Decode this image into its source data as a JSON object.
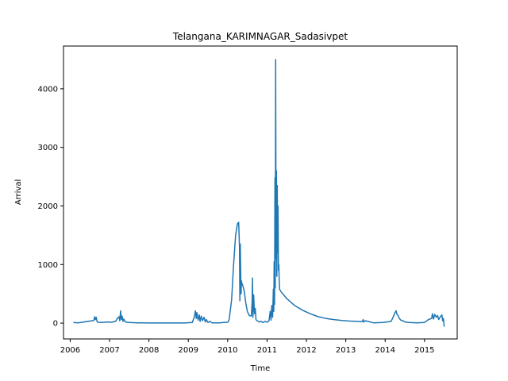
{
  "chart_data": {
    "type": "line",
    "title": "Telangana_KARIMNAGAR_Sadasivpet",
    "xlabel": "Time",
    "ylabel": "Arrival",
    "xlim": [
      2005.83,
      2015.83
    ],
    "ylim": [
      -270,
      4730
    ],
    "x_ticks": [
      2006,
      2007,
      2008,
      2009,
      2010,
      2011,
      2012,
      2013,
      2014,
      2015
    ],
    "x_tick_labels": [
      "2006",
      "2007",
      "2008",
      "2009",
      "2010",
      "2011",
      "2012",
      "2013",
      "2014",
      "2015"
    ],
    "y_ticks": [
      0,
      1000,
      2000,
      3000,
      4000
    ],
    "y_tick_labels": [
      "0",
      "1000",
      "2000",
      "3000",
      "4000"
    ],
    "grid": false,
    "legend": "none",
    "line_color": "#1f77b4",
    "series": [
      {
        "x": [
          2006.08,
          2006.2,
          2006.35,
          2006.5,
          2006.6,
          2006.62,
          2006.64,
          2006.66,
          2006.68,
          2006.7,
          2006.8,
          2006.95,
          2007.05,
          2007.15,
          2007.2,
          2007.24,
          2007.26,
          2007.28,
          2007.3,
          2007.32,
          2007.34,
          2007.36,
          2007.4,
          2007.45,
          2007.5,
          2007.7,
          2007.9,
          2008.0,
          2008.3,
          2008.6,
          2008.9,
          2009.1,
          2009.15,
          2009.18,
          2009.2,
          2009.22,
          2009.25,
          2009.28,
          2009.3,
          2009.33,
          2009.36,
          2009.4,
          2009.43,
          2009.46,
          2009.5,
          2009.55,
          2009.6,
          2009.7,
          2009.8,
          2009.9,
          2010.0,
          2010.02,
          2010.04,
          2010.1,
          2010.15,
          2010.2,
          2010.25,
          2010.28,
          2010.3,
          2010.31,
          2010.32,
          2010.33,
          2010.34,
          2010.35,
          2010.36,
          2010.38,
          2010.42,
          2010.46,
          2010.5,
          2010.55,
          2010.6,
          2010.62,
          2010.63,
          2010.64,
          2010.66,
          2010.68,
          2010.7,
          2010.72,
          2010.75,
          2010.8,
          2010.85,
          2010.9,
          2010.95,
          2011.0,
          2011.05,
          2011.08,
          2011.1,
          2011.12,
          2011.14,
          2011.16,
          2011.17,
          2011.18,
          2011.19,
          2011.2,
          2011.21,
          2011.22,
          2011.23,
          2011.24,
          2011.25,
          2011.26,
          2011.27,
          2011.28,
          2011.29,
          2011.3,
          2011.31,
          2011.32,
          2011.35,
          2011.5,
          2011.7,
          2011.9,
          2012.1,
          2012.3,
          2012.5,
          2012.7,
          2012.9,
          2013.1,
          2013.3,
          2013.42,
          2013.44,
          2013.46,
          2013.5,
          2013.7,
          2013.95,
          2014.15,
          2014.2,
          2014.25,
          2014.28,
          2014.3,
          2014.33,
          2014.36,
          2014.4,
          2014.45,
          2014.5,
          2014.6,
          2014.8,
          2015.0,
          2015.1,
          2015.18,
          2015.2,
          2015.23,
          2015.26,
          2015.3,
          2015.33,
          2015.36,
          2015.4,
          2015.44,
          2015.46,
          2015.48,
          2015.5
        ],
        "y": [
          10,
          5,
          20,
          35,
          45,
          110,
          60,
          100,
          30,
          15,
          10,
          20,
          15,
          30,
          80,
          110,
          40,
          210,
          60,
          120,
          30,
          70,
          20,
          15,
          10,
          5,
          5,
          3,
          3,
          3,
          3,
          10,
          100,
          210,
          80,
          180,
          50,
          140,
          30,
          120,
          40,
          100,
          20,
          60,
          10,
          30,
          5,
          5,
          5,
          10,
          15,
          30,
          70,
          400,
          1000,
          1500,
          1700,
          1720,
          1300,
          380,
          1350,
          900,
          500,
          720,
          680,
          650,
          550,
          350,
          200,
          130,
          120,
          350,
          770,
          100,
          480,
          160,
          250,
          60,
          40,
          20,
          30,
          10,
          30,
          15,
          40,
          200,
          50,
          300,
          100,
          580,
          200,
          1050,
          320,
          2480,
          600,
          4500,
          1100,
          2600,
          800,
          2350,
          1200,
          2000,
          900,
          1000,
          700,
          580,
          540,
          420,
          300,
          220,
          160,
          110,
          80,
          60,
          45,
          35,
          30,
          25,
          60,
          20,
          40,
          5,
          10,
          30,
          100,
          180,
          210,
          150,
          130,
          80,
          50,
          40,
          20,
          10,
          5,
          10,
          60,
          80,
          160,
          70,
          150,
          100,
          130,
          60,
          110,
          140,
          40,
          80,
          -60
        ]
      }
    ]
  }
}
